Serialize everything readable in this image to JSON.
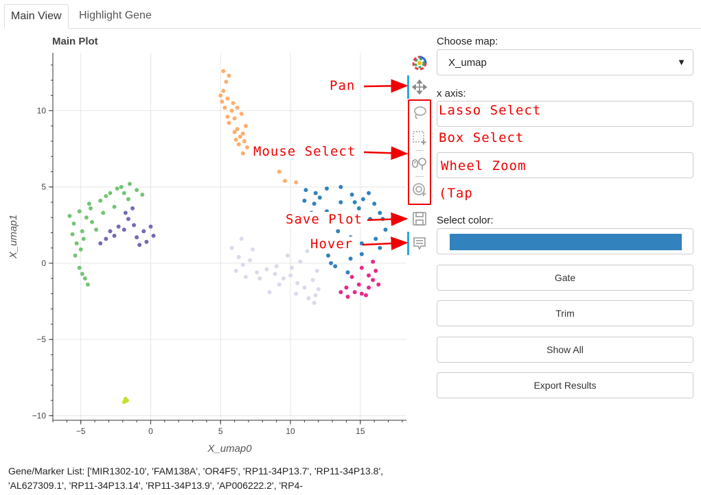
{
  "tabs": [
    {
      "label": "Main View",
      "active": true
    },
    {
      "label": "Highlight Gene",
      "active": false
    }
  ],
  "plot": {
    "title": "Main Plot",
    "xlabel": "X_umap0",
    "ylabel": "X_umap1"
  },
  "chart_data": {
    "type": "scatter",
    "title": "Main Plot",
    "xlabel": "X_umap0",
    "ylabel": "X_umap1",
    "xlim": [
      -7,
      18.3
    ],
    "ylim": [
      -10.3,
      13.8
    ],
    "xticks": [
      -5,
      0,
      5,
      10,
      15
    ],
    "yticks": [
      -10,
      -5,
      0,
      5,
      10
    ],
    "tick_labels_x": [
      "−5",
      "0",
      "5",
      "10",
      "15"
    ],
    "tick_labels_y": [
      "−10",
      "−5",
      "0",
      "5",
      "10"
    ],
    "grid": true,
    "series": [
      {
        "color": "#fdae6b",
        "points": [
          [
            5.2,
            12.6
          ],
          [
            5.4,
            11.9
          ],
          [
            5.2,
            11.3
          ],
          [
            5.5,
            10.8
          ],
          [
            5.3,
            10.2
          ],
          [
            5.8,
            10.0
          ],
          [
            6.0,
            9.5
          ],
          [
            5.6,
            9.2
          ],
          [
            6.2,
            8.8
          ],
          [
            6.4,
            8.3
          ],
          [
            6.7,
            8.0
          ],
          [
            6.3,
            7.8
          ],
          [
            6.9,
            7.6
          ],
          [
            5.9,
            10.5
          ],
          [
            6.5,
            9.8
          ],
          [
            6.1,
            8.1
          ],
          [
            5.5,
            9.6
          ],
          [
            6.8,
            9.0
          ],
          [
            5.1,
            10.6
          ],
          [
            6.6,
            8.5
          ],
          [
            9.2,
            6.0
          ],
          [
            9.6,
            5.4
          ],
          [
            10.4,
            5.3
          ],
          [
            5.6,
            12.3
          ],
          [
            6.2,
            10.2
          ],
          [
            5.0,
            11.0
          ],
          [
            6.0,
            8.6
          ],
          [
            6.6,
            7.2
          ]
        ]
      },
      {
        "color": "#3182bd",
        "points": [
          [
            11.1,
            4.8
          ],
          [
            11.8,
            4.6
          ],
          [
            12.6,
            4.9
          ],
          [
            13.6,
            5.0
          ],
          [
            14.4,
            4.5
          ],
          [
            15.2,
            4.2
          ],
          [
            16.0,
            3.9
          ],
          [
            16.4,
            3.3
          ],
          [
            15.7,
            2.9
          ],
          [
            14.7,
            2.7
          ],
          [
            13.6,
            3.0
          ],
          [
            12.6,
            3.4
          ],
          [
            11.7,
            3.9
          ],
          [
            11.0,
            4.1
          ],
          [
            12.3,
            2.6
          ],
          [
            13.4,
            2.1
          ],
          [
            14.3,
            1.7
          ],
          [
            15.1,
            1.3
          ],
          [
            16.1,
            1.6
          ],
          [
            16.8,
            2.2
          ],
          [
            13.2,
            1.1
          ],
          [
            12.7,
            0.5
          ],
          [
            13.2,
            -0.2
          ],
          [
            14.1,
            -0.6
          ],
          [
            15.1,
            0.6
          ],
          [
            14.3,
            0.3
          ],
          [
            13.6,
            4.0
          ],
          [
            15.6,
            4.6
          ],
          [
            16.6,
            2.9
          ],
          [
            12.1,
            4.3
          ],
          [
            11.5,
            3.3
          ],
          [
            14.9,
            3.6
          ],
          [
            13.9,
            1.4
          ],
          [
            12.9,
            0.0
          ],
          [
            16.4,
            1.0
          ],
          [
            14.6,
            4.0
          ]
        ]
      },
      {
        "color": "#74c476",
        "points": [
          [
            -5.8,
            3.1
          ],
          [
            -5.1,
            3.4
          ],
          [
            -4.3,
            3.6
          ],
          [
            -3.6,
            4.1
          ],
          [
            -2.9,
            4.6
          ],
          [
            -2.1,
            5.0
          ],
          [
            -1.5,
            5.2
          ],
          [
            -1.0,
            4.8
          ],
          [
            -0.6,
            4.5
          ],
          [
            -1.6,
            4.2
          ],
          [
            -2.6,
            3.7
          ],
          [
            -3.4,
            3.3
          ],
          [
            -4.2,
            2.7
          ],
          [
            -4.9,
            2.1
          ],
          [
            -5.3,
            1.3
          ],
          [
            -5.4,
            0.5
          ],
          [
            -5.1,
            -0.3
          ],
          [
            -4.7,
            -1.0
          ],
          [
            -4.5,
            -1.4
          ],
          [
            -5.5,
            2.6
          ],
          [
            -4.6,
            3.0
          ],
          [
            -3.9,
            2.2
          ],
          [
            -5.0,
            0.9
          ],
          [
            -4.9,
            -0.7
          ],
          [
            -3.2,
            4.4
          ],
          [
            -2.4,
            4.9
          ],
          [
            -5.6,
            1.9
          ],
          [
            -4.4,
            3.9
          ],
          [
            -1.9,
            4.6
          ],
          [
            -4.8,
            1.6
          ]
        ]
      },
      {
        "color": "#756bb1",
        "points": [
          [
            -3.2,
            1.6
          ],
          [
            -2.6,
            1.8
          ],
          [
            -1.9,
            2.2
          ],
          [
            -1.2,
            2.5
          ],
          [
            -0.5,
            2.1
          ],
          [
            0.2,
            1.8
          ],
          [
            -0.3,
            1.4
          ],
          [
            -1.0,
            1.7
          ],
          [
            -1.6,
            2.9
          ],
          [
            -2.3,
            2.4
          ],
          [
            -3.6,
            1.3
          ],
          [
            -1.8,
            3.3
          ],
          [
            0.0,
            2.4
          ],
          [
            -1.3,
            3.6
          ],
          [
            -2.9,
            2.1
          ],
          [
            -0.8,
            1.2
          ]
        ]
      },
      {
        "color": "#dadaeb",
        "points": [
          [
            5.8,
            1.0
          ],
          [
            6.3,
            0.4
          ],
          [
            6.6,
            -0.1
          ],
          [
            7.1,
            0.2
          ],
          [
            7.6,
            -0.6
          ],
          [
            8.3,
            -0.4
          ],
          [
            8.9,
            -0.7
          ],
          [
            9.5,
            -1.0
          ],
          [
            10.0,
            -0.8
          ],
          [
            10.5,
            -1.3
          ],
          [
            11.0,
            -1.6
          ],
          [
            11.6,
            -1.1
          ],
          [
            12.0,
            -1.7
          ],
          [
            11.3,
            -2.3
          ],
          [
            11.7,
            -2.6
          ],
          [
            9.2,
            -1.4
          ],
          [
            8.5,
            -1.9
          ],
          [
            7.8,
            -1.0
          ],
          [
            6.8,
            -0.9
          ],
          [
            9.8,
            0.5
          ],
          [
            10.7,
            0.1
          ],
          [
            11.2,
            0.8
          ],
          [
            10.1,
            -0.3
          ],
          [
            11.9,
            -0.5
          ],
          [
            6.1,
            -0.5
          ],
          [
            6.5,
            1.6
          ],
          [
            7.3,
            0.9
          ],
          [
            9.0,
            -0.2
          ],
          [
            10.4,
            -2.0
          ],
          [
            11.8,
            -2.1
          ]
        ]
      },
      {
        "color": "#e7298a",
        "points": [
          [
            13.6,
            -1.9
          ],
          [
            14.1,
            -2.2
          ],
          [
            14.6,
            -1.9
          ],
          [
            15.1,
            -2.0
          ],
          [
            15.6,
            -1.6
          ],
          [
            15.9,
            -1.1
          ],
          [
            16.1,
            -0.5
          ],
          [
            15.9,
            0.1
          ],
          [
            15.6,
            -0.8
          ],
          [
            14.9,
            -1.4
          ],
          [
            14.4,
            -0.9
          ],
          [
            15.1,
            -0.3
          ],
          [
            16.3,
            -1.4
          ],
          [
            15.4,
            -2.1
          ],
          [
            14.0,
            -1.6
          ]
        ]
      },
      {
        "color": "#c7e02a",
        "points": [
          [
            -1.7,
            -9.0
          ],
          [
            -1.9,
            -9.1
          ],
          [
            -1.8,
            -8.9
          ]
        ]
      }
    ]
  },
  "toolbar": {
    "tools": [
      {
        "name": "bokeh-logo-icon"
      },
      {
        "name": "pan-icon"
      },
      {
        "name": "lasso-select-icon"
      },
      {
        "name": "box-select-icon"
      },
      {
        "name": "wheel-zoom-icon"
      },
      {
        "name": "tap-icon"
      },
      {
        "name": "save-icon"
      },
      {
        "name": "hover-icon"
      }
    ]
  },
  "annotations": {
    "pan": "Pan",
    "mouse_select": "Mouse Select",
    "save_plot": "Save Plot",
    "hover": "Hover",
    "lasso": "Lasso Select",
    "box": "Box Select",
    "wheel": "Wheel Zoom",
    "tap": "Tap",
    "tap_paren": "(",
    "color": "#e00000"
  },
  "controls": {
    "choose_map_label": "Choose map:",
    "map_value": "X_umap",
    "x_axis_label": "x axis:",
    "select_color_label": "Select color:",
    "selected_color": "#3182bd",
    "buttons": {
      "gate": "Gate",
      "trim": "Trim",
      "show_all": "Show All",
      "export": "Export Results"
    }
  },
  "gene_list": "Gene/Marker List: ['MIR1302-10', 'FAM138A', 'OR4F5', 'RP11-34P13.7', 'RP11-34P13.8', 'AL627309.1', 'RP11-34P13.14', 'RP11-34P13.9', 'AP006222.2', 'RP4-"
}
